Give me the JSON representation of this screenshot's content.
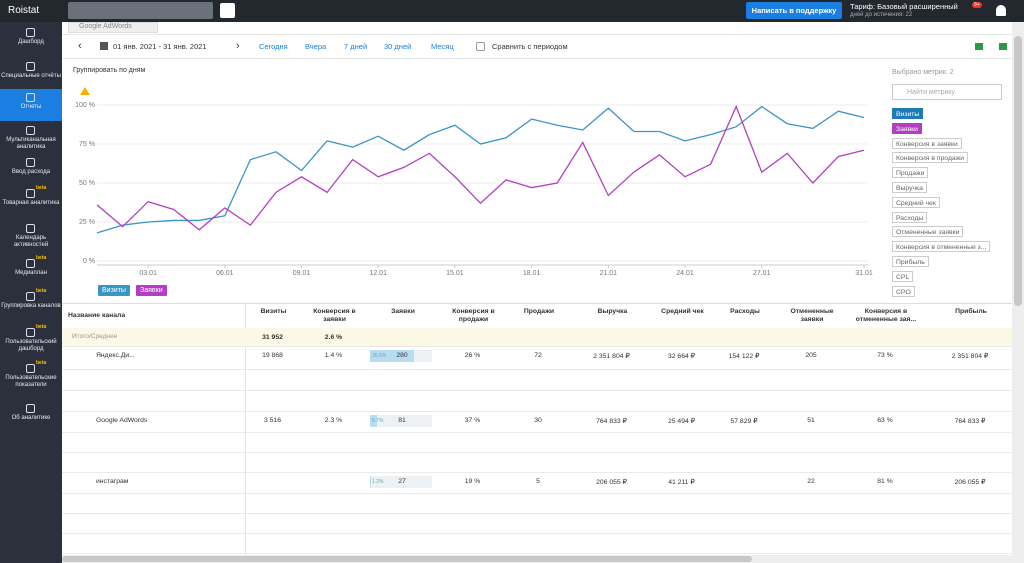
{
  "topbar": {
    "logo": "Roistat",
    "support_button": "Написать в поддержку",
    "tariff": "Тариф: Базовый расширенный",
    "days_left": "дней до истечения: 22",
    "notifications": "9+"
  },
  "sidebar": [
    {
      "label": "Дашборд"
    },
    {
      "label": "Специальные отчёты"
    },
    {
      "label": "Отчеты",
      "active": true
    },
    {
      "label": "Мультиканальная аналитика"
    },
    {
      "label": "Ввод расхода"
    },
    {
      "label": "Товарная аналитика",
      "badge": "beta"
    },
    {
      "label": "Календарь активностей"
    },
    {
      "label": "Медиаплан",
      "badge": "beta"
    },
    {
      "label": "Группировка каналов",
      "badge": "beta"
    },
    {
      "label": "Пользовательский дашборд",
      "badge": "beta"
    },
    {
      "label": "Пользовательские показатели",
      "badge": "beta"
    },
    {
      "label": "Об аналитике"
    }
  ],
  "tab": "Google AdWords",
  "toolbar": {
    "date_range": "01 янв. 2021 - 31 янв. 2021",
    "presets": [
      "Сегодня",
      "Вчера",
      "7 дней",
      "30 дней",
      "Месяц"
    ],
    "compare": "Сравнить с периодом"
  },
  "group_by": "Группировать по дням",
  "chart_data": {
    "type": "line",
    "categories": [
      null,
      null,
      "03.01",
      null,
      null,
      "06.01",
      null,
      null,
      "09.01",
      null,
      null,
      "12.01",
      null,
      null,
      "15.01",
      null,
      null,
      "18.01",
      null,
      null,
      "21.01",
      null,
      null,
      "24.01",
      null,
      null,
      "27.01",
      null,
      null,
      null,
      "31.01"
    ],
    "ylim": [
      0,
      100
    ],
    "yticks": [
      {
        "value": 0,
        "label": "0 %"
      },
      {
        "value": 25,
        "label": "25 %"
      },
      {
        "value": 50,
        "label": "50 %"
      },
      {
        "value": 75,
        "label": "75 %"
      },
      {
        "value": 100,
        "label": "100 %"
      }
    ],
    "grid": true,
    "series": [
      {
        "name": "Визиты",
        "color": "#3a95c6",
        "values": [
          18,
          23,
          25,
          26,
          26,
          29,
          65,
          70,
          58,
          77,
          73,
          80,
          71,
          81,
          87,
          75,
          79,
          91,
          87,
          84,
          98,
          83,
          83,
          77,
          81,
          86,
          99,
          88,
          85,
          96,
          92
        ]
      },
      {
        "name": "Заявки",
        "color": "#b43fc4",
        "values": [
          36,
          22,
          38,
          33,
          20,
          34,
          23,
          44,
          54,
          44,
          65,
          54,
          60,
          69,
          54,
          37,
          52,
          47,
          50,
          76,
          42,
          57,
          68,
          54,
          62,
          99,
          57,
          69,
          50,
          67,
          71
        ]
      }
    ]
  },
  "metrics_panel": {
    "selected_count": "Выбрано метрик: 2",
    "search_placeholder": "Найти метрику",
    "metrics": [
      {
        "label": "Визиты",
        "color": "#1f7ab8"
      },
      {
        "label": "Заявки",
        "color": "#b13fbf"
      },
      {
        "label": "Конверсия в заявки"
      },
      {
        "label": "Конверсия в продажи"
      },
      {
        "label": "Продажи"
      },
      {
        "label": "Выручка"
      },
      {
        "label": "Средний чек"
      },
      {
        "label": "Расходы"
      },
      {
        "label": "Отмененные заявки"
      },
      {
        "label": "Конверсия в отмененные з..."
      },
      {
        "label": "Прибыль"
      },
      {
        "label": "CPL"
      },
      {
        "label": "CPO"
      }
    ]
  },
  "table": {
    "columns": [
      "Название канала",
      "Визиты",
      "Конверсия в заявки",
      "Заявки",
      "Конверсия в продажи",
      "Продажи",
      "Выручка",
      "Средний чек",
      "Расходы",
      "Отмененные заявки",
      "Конверсия в отмененные зая...",
      "Прибыль"
    ],
    "total": {
      "name": "Итого/Среднее",
      "cells": [
        "31 952",
        "2.6 %",
        null,
        null,
        null,
        null,
        null,
        null,
        null,
        null,
        null
      ]
    },
    "rows": [
      {
        "name": "Яндекс.Ди...",
        "cells": [
          "19 868",
          "1.4 %",
          "280",
          "26 %",
          "72",
          "2 351 804 ₽",
          "32 664 ₽",
          "154 122 ₽",
          "205",
          "73 %",
          "2 351 804 ₽"
        ],
        "lead_share": 35.5,
        "lead_share_label": "35.5%"
      },
      {
        "name": "Google AdWords",
        "cells": [
          "3 516",
          "2.3 %",
          "81",
          "37 %",
          "30",
          "764 833 ₽",
          "25 494 ₽",
          "57 829 ₽",
          "51",
          "63 %",
          "764 833 ₽"
        ],
        "lead_share": 5.7,
        "lead_share_label": "5.7%"
      },
      {
        "name": "инстаграм",
        "cells": [
          null,
          null,
          "27",
          "19 %",
          "5",
          "206 055 ₽",
          "41 211 ₽",
          null,
          "22",
          "81 %",
          "206 055 ₽"
        ],
        "lead_share": 1.2,
        "lead_share_label": "1.2%"
      }
    ]
  }
}
